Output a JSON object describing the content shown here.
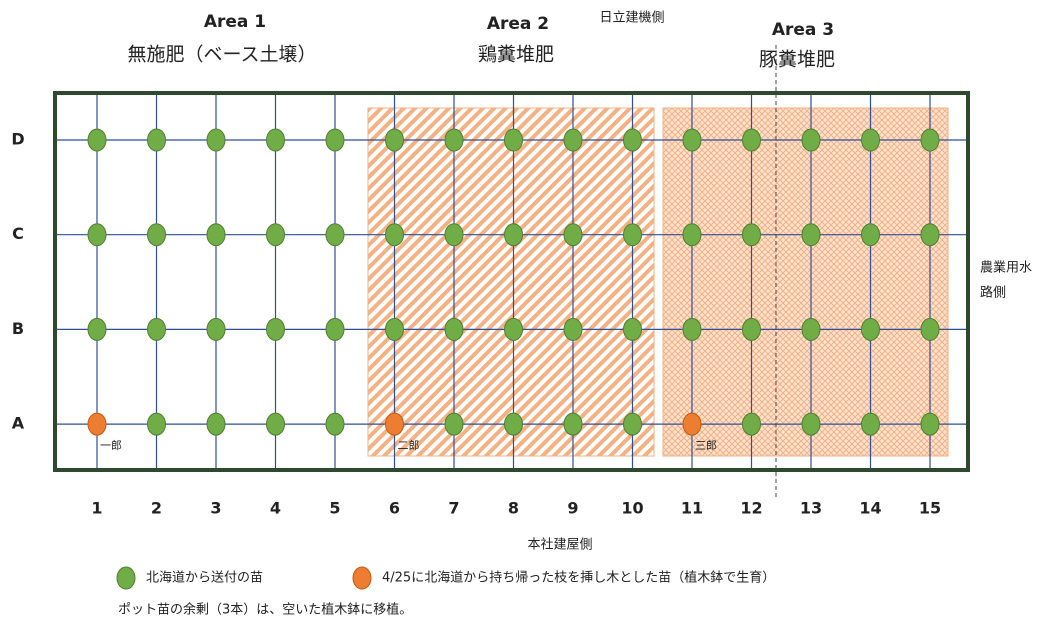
{
  "areas": [
    {
      "title": "Area 1",
      "subtitle": "無施肥（ベース土壌）"
    },
    {
      "title": "Area 2",
      "subtitle": "鶏糞堆肥"
    },
    {
      "title": "Area 3",
      "subtitle": "豚糞堆肥"
    }
  ],
  "sides": {
    "top": "日立建機側",
    "right": [
      "農業用水",
      "路側"
    ],
    "bottom": "本社建屋側"
  },
  "rows": [
    "D",
    "C",
    "B",
    "A"
  ],
  "columns": [
    "1",
    "2",
    "3",
    "4",
    "5",
    "6",
    "7",
    "8",
    "9",
    "10",
    "11",
    "12",
    "13",
    "14",
    "15"
  ],
  "cuttings": [
    {
      "row": "A",
      "column": "1",
      "name": "一郎"
    },
    {
      "row": "A",
      "column": "6",
      "name": "二郎"
    },
    {
      "row": "A",
      "column": "11",
      "name": "三郎"
    }
  ],
  "legend": [
    "北海道から送付の苗",
    "4/25に北海道から持ち帰った枝を挿し木とした苗（植木鉢で生育）"
  ],
  "note": "ポット苗の余剰（3本）は、空いた植木鉢に移植。"
}
